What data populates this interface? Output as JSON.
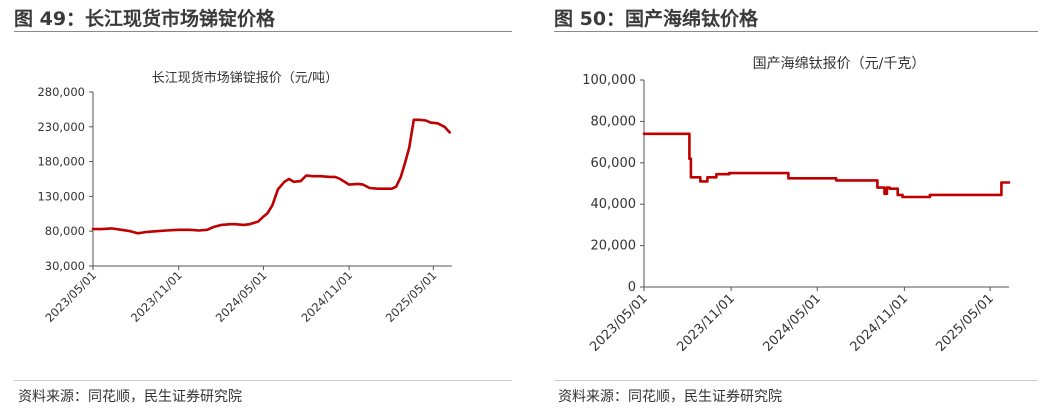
{
  "panels": [
    {
      "figure_title": "图 49：长江现货市场锑锭价格",
      "source": "资料来源：同花顺，民生证券研究院"
    },
    {
      "figure_title": "图 50：国产海绵钛价格",
      "source": "资料来源：同花顺，民生证券研究院"
    }
  ],
  "colors": {
    "series": "#c00000",
    "axis": "#555555",
    "rule": "#8a8a8a"
  },
  "chart_data": [
    {
      "type": "line",
      "title": "长江现货市场锑锭报价（元/吨）",
      "xlabel": "",
      "ylabel": "",
      "ylim": [
        30000,
        280000
      ],
      "yticks": [
        30000,
        80000,
        130000,
        180000,
        230000,
        280000
      ],
      "ytick_labels": [
        "30,000",
        "80,000",
        "130,000",
        "180,000",
        "230,000",
        "280,000"
      ],
      "xlim": [
        "2023-05-01",
        "2025-06-10"
      ],
      "xticks": [
        "2023-05-01",
        "2023-11-01",
        "2024-05-01",
        "2024-11-01",
        "2025-05-01"
      ],
      "xtick_labels": [
        "2023/05/01",
        "2023/11/01",
        "2024/05/01",
        "2024/11/01",
        "2025/05/01"
      ],
      "grid": false,
      "legend": "none",
      "series": [
        {
          "step": false,
          "x": [
            "2023-05-01",
            "2023-05-20",
            "2023-06-10",
            "2023-07-01",
            "2023-07-20",
            "2023-08-05",
            "2023-08-25",
            "2023-09-15",
            "2023-10-05",
            "2023-11-01",
            "2023-11-25",
            "2023-12-15",
            "2024-01-01",
            "2024-01-15",
            "2024-02-01",
            "2024-02-20",
            "2024-03-01",
            "2024-03-20",
            "2024-04-01",
            "2024-04-20",
            "2024-05-01",
            "2024-05-10",
            "2024-05-20",
            "2024-06-01",
            "2024-06-15",
            "2024-06-25",
            "2024-07-05",
            "2024-07-20",
            "2024-08-01",
            "2024-08-15",
            "2024-09-01",
            "2024-09-20",
            "2024-10-01",
            "2024-10-10",
            "2024-10-20",
            "2024-11-01",
            "2024-11-20",
            "2024-12-01",
            "2024-12-15",
            "2025-01-01",
            "2025-01-20",
            "2025-02-01",
            "2025-02-10",
            "2025-02-20",
            "2025-03-01",
            "2025-03-10",
            "2025-03-20",
            "2025-04-01",
            "2025-04-15",
            "2025-04-25",
            "2025-05-10",
            "2025-05-25",
            "2025-06-05"
          ],
          "y": [
            83000,
            83000,
            84000,
            82000,
            80000,
            77000,
            79000,
            80000,
            81000,
            82000,
            82000,
            81000,
            82000,
            86000,
            89000,
            90000,
            90000,
            89000,
            90000,
            94000,
            101000,
            106000,
            117000,
            140000,
            151000,
            155000,
            151000,
            152000,
            160000,
            159000,
            159000,
            158000,
            158000,
            156000,
            152000,
            147000,
            148000,
            147000,
            142000,
            141000,
            141000,
            141000,
            144000,
            158000,
            178000,
            200000,
            240000,
            240000,
            239000,
            236000,
            235000,
            230000,
            222000
          ]
        }
      ]
    },
    {
      "type": "line",
      "title": "国产海绵钛报价（元/千克）",
      "xlabel": "",
      "ylabel": "",
      "ylim": [
        0,
        100000
      ],
      "yticks": [
        0,
        20000,
        40000,
        60000,
        80000,
        100000
      ],
      "ytick_labels": [
        "0",
        "20,000",
        "40,000",
        "60,000",
        "80,000",
        "100,000"
      ],
      "xlim": [
        "2023-05-01",
        "2025-06-10"
      ],
      "xticks": [
        "2023-05-01",
        "2023-11-01",
        "2024-05-01",
        "2024-11-01",
        "2025-05-01"
      ],
      "xtick_labels": [
        "2023/05/01",
        "2023/11/01",
        "2024/05/01",
        "2024/11/01",
        "2025/05/01"
      ],
      "grid": false,
      "legend": "none",
      "series": [
        {
          "step": true,
          "x": [
            "2023-05-01",
            "2023-08-05",
            "2023-08-08",
            "2023-08-12",
            "2023-08-28",
            "2023-09-12",
            "2023-10-01",
            "2023-10-28",
            "2023-11-05",
            "2024-03-01",
            "2024-06-10",
            "2024-09-05",
            "2024-09-20",
            "2024-09-25",
            "2024-10-01",
            "2024-10-18",
            "2024-10-28",
            "2024-12-25",
            "2025-05-25",
            "2025-06-10"
          ],
          "y": [
            74000,
            62000,
            53000,
            53000,
            51000,
            53000,
            54500,
            55000,
            55000,
            52500,
            51500,
            48000,
            45000,
            48000,
            47500,
            44500,
            43500,
            44500,
            50500,
            50500
          ]
        }
      ]
    }
  ]
}
